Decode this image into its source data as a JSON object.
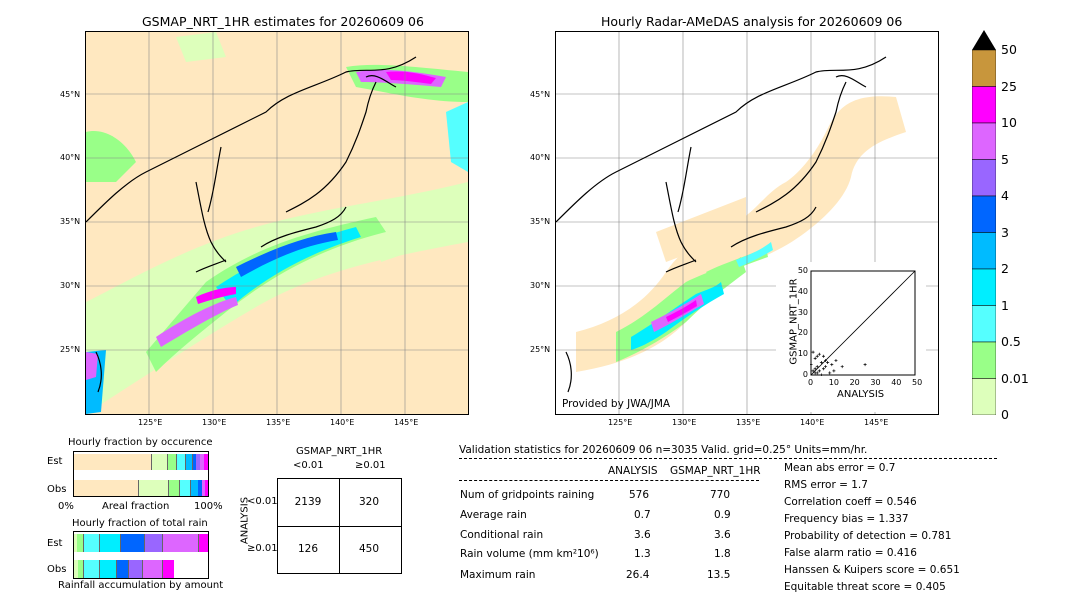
{
  "left_map": {
    "title": "GSMAP_NRT_1HR estimates for 20260609 06",
    "lat_labels": [
      "45°N",
      "40°N",
      "35°N",
      "30°N",
      "25°N"
    ],
    "lon_labels": [
      "125°E",
      "130°E",
      "135°E",
      "140°E",
      "145°E"
    ]
  },
  "right_map": {
    "title": "Hourly Radar-AMeDAS analysis for 20260609 06",
    "lat_labels": [
      "45°N",
      "40°N",
      "35°N",
      "30°N",
      "25°N"
    ],
    "lon_labels": [
      "125°E",
      "130°E",
      "135°E",
      "140°E",
      "145°E"
    ],
    "credit": "Provided by JWA/JMA"
  },
  "colorbar": {
    "labels": [
      "50",
      "25",
      "10",
      "5",
      "4",
      "3",
      "2",
      "1",
      "0.5",
      "0.01",
      "0"
    ],
    "colors": [
      "#c8963c",
      "#ff00ff",
      "#dd66ff",
      "#9966ff",
      "#0066ff",
      "#00bbff",
      "#00eeff",
      "#55ffff",
      "#99ff88",
      "#ddffbb",
      "#ffe8c0"
    ]
  },
  "chart_data": [
    {
      "type": "scatter",
      "title": "",
      "xlabel": "ANALYSIS",
      "ylabel": "GSMAP_NRT_1HR",
      "xlim": [
        0,
        50
      ],
      "ylim": [
        0,
        50
      ],
      "x_ticks": [
        "0",
        "10",
        "20",
        "30",
        "40",
        "50"
      ],
      "y_ticks": [
        "0",
        "10",
        "20",
        "30",
        "40",
        "50"
      ],
      "points": [
        [
          1,
          2
        ],
        [
          2,
          1
        ],
        [
          3,
          4
        ],
        [
          4,
          2
        ],
        [
          5,
          6
        ],
        [
          6,
          3
        ],
        [
          2,
          8
        ],
        [
          7,
          4
        ],
        [
          8,
          6
        ],
        [
          3,
          9
        ],
        [
          10,
          5
        ],
        [
          12,
          7
        ],
        [
          1,
          11
        ],
        [
          4,
          10
        ],
        [
          26,
          5
        ],
        [
          15,
          4
        ],
        [
          9,
          1
        ],
        [
          5,
          0
        ],
        [
          0,
          5
        ],
        [
          11,
          2
        ],
        [
          6,
          9
        ],
        [
          2,
          3
        ],
        [
          3,
          1
        ],
        [
          7,
          7
        ]
      ]
    },
    {
      "type": "bar",
      "title": "Hourly fraction by occurence",
      "categories": [
        "Est",
        "Obs"
      ],
      "xlabel": "Areal fraction",
      "x_ticks": [
        "0%",
        "100%"
      ]
    },
    {
      "type": "bar",
      "title": "Hourly fraction of total rain",
      "categories": [
        "Est",
        "Obs"
      ],
      "xlabel": "Rainfall accumulation by amount"
    }
  ],
  "contingency": {
    "title": "GSMAP_NRT_1HR",
    "col_headers": [
      "<0.01",
      "≥0.01"
    ],
    "row_label": "ANALYSIS",
    "row_headers": [
      "<0.01",
      "≥0.01"
    ],
    "cells": [
      [
        "2139",
        "320"
      ],
      [
        "126",
        "450"
      ]
    ]
  },
  "validation": {
    "header": "Validation statistics for 20260609 06  n=3035 Valid. grid=0.25° Units=mm/hr.",
    "col_analysis": "ANALYSIS",
    "col_gsmap": "GSMAP_NRT_1HR",
    "rows": [
      {
        "label": "Num of gridpoints raining",
        "analysis": "576",
        "gsmap": "770"
      },
      {
        "label": "Average rain",
        "analysis": "0.7",
        "gsmap": "0.9"
      },
      {
        "label": "Conditional rain",
        "analysis": "3.6",
        "gsmap": "3.6"
      },
      {
        "label": "Rain volume (mm km²10⁶)",
        "analysis": "1.3",
        "gsmap": "1.8"
      },
      {
        "label": "Maximum rain",
        "analysis": "26.4",
        "gsmap": "13.5"
      }
    ],
    "scores": [
      "Mean abs error =    0.7",
      "RMS error =    1.7",
      "Correlation coeff =  0.546",
      "Frequency bias =  1.337",
      "Probability of detection =  0.781",
      "False alarm ratio =  0.416",
      "Hanssen & Kuipers score =  0.651",
      "Equitable threat score =  0.405"
    ]
  }
}
